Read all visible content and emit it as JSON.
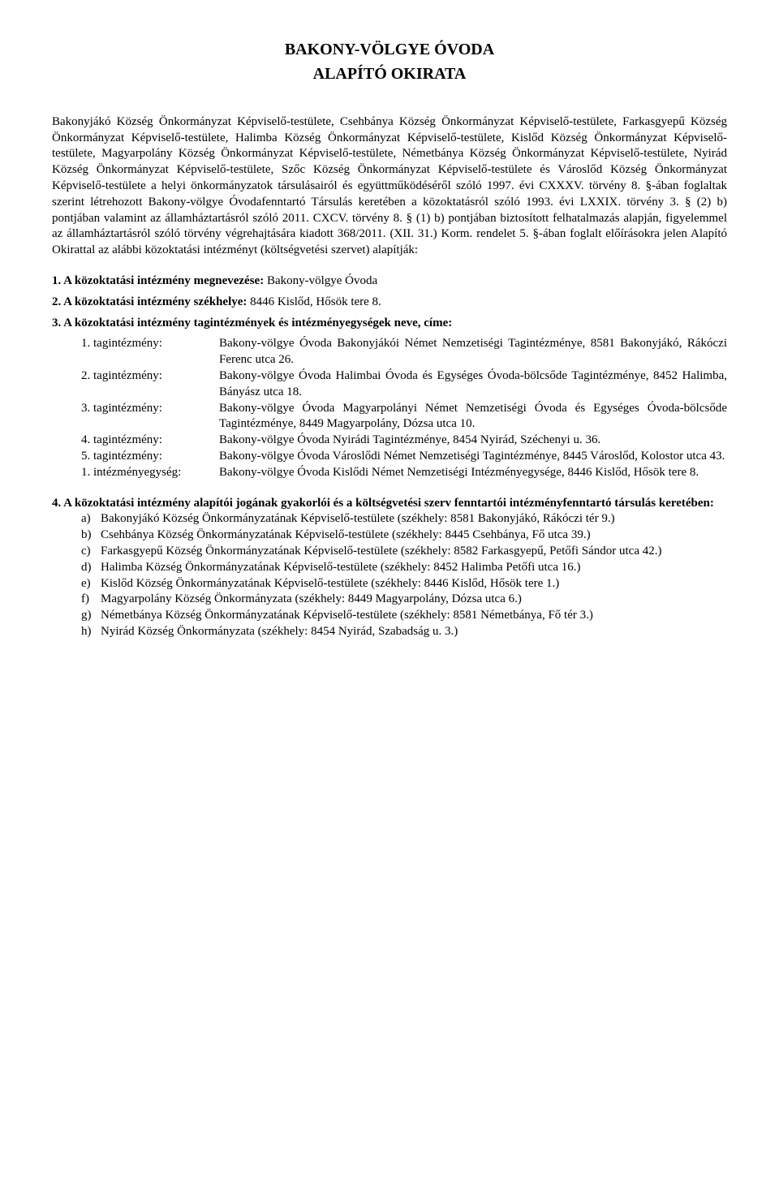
{
  "title": "BAKONY-VÖLGYE ÓVODA",
  "subtitle": "ALAPÍTÓ OKIRATA",
  "preamble": "Bakonyjákó Község Önkormányzat Képviselő-testülete, Csehbánya Község Önkormányzat Képviselő-testülete, Farkasgyepű Község Önkormányzat Képviselő-testülete, Halimba Község Önkormányzat Képviselő-testülete, Kislőd Község Önkormányzat Képviselő-testülete, Magyarpolány Község Önkormányzat Képviselő-testülete, Németbánya Község Önkormányzat Képviselő-testülete, Nyirád Község Önkormányzat Képviselő-testülete, Szőc Község Önkormányzat Képviselő-testülete és Városlőd Község Önkormányzat Képviselő-testülete a helyi önkormányzatok társulásairól és együttműködéséről szóló 1997. évi CXXXV. törvény 8. §-ában foglaltak szerint létrehozott Bakony-völgye Óvodafenntartó Társulás keretében a közoktatásról szóló 1993. évi LXXIX. törvény 3. § (2) b) pontjában valamint az államháztartásról szóló 2011. CXCV. törvény 8. § (1) b) pontjában biztosított felhatalmazás alapján, figyelemmel az államháztartásról szóló törvény végrehajtására kiadott 368/2011. (XII. 31.) Korm. rendelet 5. §-ában foglalt előírásokra jelen Alapító Okirattal az alábbi közoktatási intézményt (költségvetési szervet) alapítják:",
  "sec1": {
    "label": "1. A közoktatási intézmény megnevezése:",
    "value": " Bakony-völgye Óvoda"
  },
  "sec2": {
    "label": "2. A közoktatási intézmény székhelye:",
    "value": " 8446 Kislőd, Hősök tere 8."
  },
  "sec3": {
    "label": "3. A közoktatási intézmény tagintézmények és intézményegységek neve, címe:"
  },
  "tag": [
    {
      "l": "1. tagintézmény:",
      "r": "Bakony-völgye Óvoda Bakonyjákói Német Nemzetiségi Tagintézménye, 8581 Bakonyjákó, Rákóczi Ferenc utca 26."
    },
    {
      "l": "2. tagintézmény:",
      "r": "Bakony-völgye Óvoda Halimbai Óvoda és Egységes Óvoda-bölcsőde Tagintézménye, 8452 Halimba, Bányász utca 18."
    },
    {
      "l": "3. tagintézmény:",
      "r": "Bakony-völgye Óvoda Magyarpolányi Német Nemzetiségi Óvoda és Egységes Óvoda-bölcsőde Tagintézménye, 8449 Magyarpolány, Dózsa utca 10."
    },
    {
      "l": "4. tagintézmény:",
      "r": "Bakony-völgye Óvoda Nyirádi Tagintézménye, 8454 Nyirád, Széchenyi u. 36."
    },
    {
      "l": "5. tagintézmény:",
      "r": "Bakony-völgye Óvoda Városlődi Német Nemzetiségi Tagintézménye, 8445 Városlőd, Kolostor utca 43."
    },
    {
      "l": "1. intézményegység:",
      "r": "Bakony-völgye Óvoda Kislődi Német Nemzetiségi Intézményegysége, 8446 Kislőd, Hősök tere 8."
    }
  ],
  "sec4": {
    "intro": "4. A közoktatási intézmény alapítói jogának gyakorlói és a költségvetési szerv fenntartói intézményfenntartó társulás keretében:",
    "items": [
      {
        "l": "a)",
        "t": "Bakonyjákó Község Önkormányzatának Képviselő-testülete (székhely: 8581 Bakonyjákó, Rákóczi tér 9.)"
      },
      {
        "l": "b)",
        "t": "Csehbánya Község Önkormányzatának Képviselő-testülete (székhely: 8445 Csehbánya, Fő utca 39.)"
      },
      {
        "l": "c)",
        "t": "Farkasgyepű Község Önkormányzatának Képviselő-testülete (székhely: 8582 Farkasgyepű, Petőfi Sándor utca 42.)"
      },
      {
        "l": "d)",
        "t": "Halimba Község Önkormányzatának Képviselő-testülete (székhely: 8452 Halimba Petőfi utca 16.)"
      },
      {
        "l": "e)",
        "t": "Kislőd Község Önkormányzatának Képviselő-testülete (székhely: 8446 Kislőd, Hősök tere 1.)"
      },
      {
        "l": "f)",
        "t": "Magyarpolány Község Önkormányzata (székhely: 8449 Magyarpolány, Dózsa utca 6.)"
      },
      {
        "l": "g)",
        "t": "Németbánya Község Önkormányzatának Képviselő-testülete (székhely: 8581 Németbánya, Fő tér 3.)"
      },
      {
        "l": "h)",
        "t": "Nyirád Község Önkormányzata (székhely: 8454 Nyirád, Szabadság u. 3.)"
      }
    ]
  }
}
